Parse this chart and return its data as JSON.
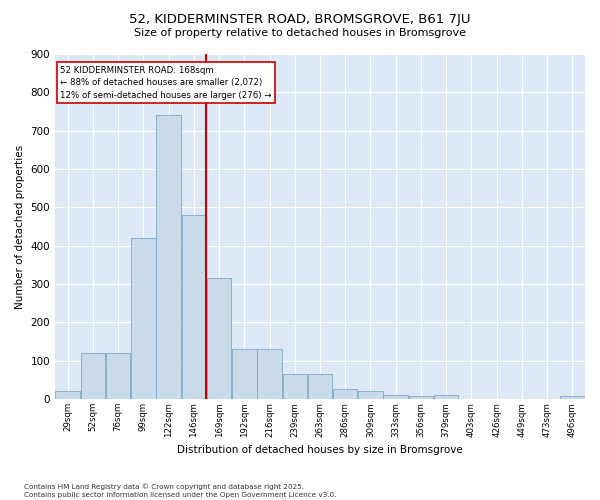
{
  "title": "52, KIDDERMINSTER ROAD, BROMSGROVE, B61 7JU",
  "subtitle": "Size of property relative to detached houses in Bromsgrove",
  "xlabel": "Distribution of detached houses by size in Bromsgrove",
  "ylabel": "Number of detached properties",
  "bar_color": "#c9daea",
  "bar_edge_color": "#7aaac8",
  "background_color": "#dce8f5",
  "grid_color": "#ffffff",
  "annotation_line_color": "#cc0000",
  "annotation_box_color": "#cc0000",
  "annotation_text": "52 KIDDERMINSTER ROAD: 168sqm\n← 88% of detached houses are smaller (2,072)\n12% of semi-detached houses are larger (276) →",
  "annotation_bar_index": 6,
  "categories": [
    "29sqm",
    "52sqm",
    "76sqm",
    "99sqm",
    "122sqm",
    "146sqm",
    "169sqm",
    "192sqm",
    "216sqm",
    "239sqm",
    "263sqm",
    "286sqm",
    "309sqm",
    "333sqm",
    "356sqm",
    "379sqm",
    "403sqm",
    "426sqm",
    "449sqm",
    "473sqm",
    "496sqm"
  ],
  "values": [
    20,
    120,
    120,
    420,
    740,
    480,
    315,
    130,
    130,
    65,
    65,
    25,
    20,
    10,
    8,
    10,
    0,
    0,
    0,
    0,
    8
  ],
  "ylim": [
    0,
    900
  ],
  "yticks": [
    0,
    100,
    200,
    300,
    400,
    500,
    600,
    700,
    800,
    900
  ],
  "footnote1": "Contains HM Land Registry data © Crown copyright and database right 2025.",
  "footnote2": "Contains public sector information licensed under the Open Government Licence v3.0."
}
